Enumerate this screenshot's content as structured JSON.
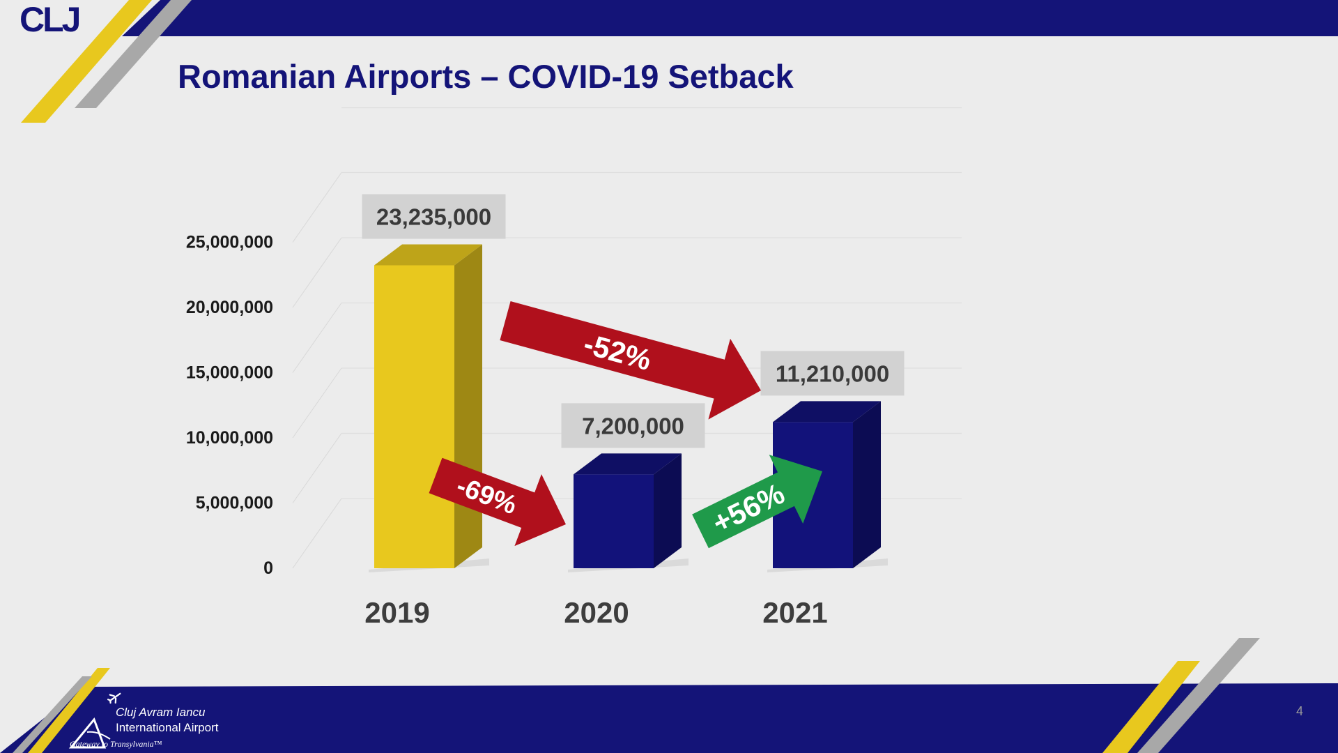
{
  "header": {
    "logo_text": "CLJ",
    "title": "Romanian Airports – COVID-19 Setback"
  },
  "colors": {
    "navy": "#141478",
    "yellow": "#e8c81e",
    "gray_stripe": "#a8a8a8",
    "bar_navy": "#12127a",
    "arrow_red": "#b0101c",
    "arrow_green": "#1f9a4a",
    "background": "#ececec"
  },
  "chart_data": {
    "type": "bar",
    "title": "",
    "xlabel": "",
    "ylabel": "",
    "categories": [
      "2019",
      "2020",
      "2021"
    ],
    "values": [
      23235000,
      7200000,
      11210000
    ],
    "value_labels": [
      "23,235,000",
      "7,200,000",
      "11,210,000"
    ],
    "bar_colors": [
      "#e8c81e",
      "#12127a",
      "#12127a"
    ],
    "ylim": [
      0,
      25000000
    ],
    "yticks": [
      0,
      5000000,
      10000000,
      15000000,
      20000000,
      25000000
    ],
    "ytick_labels": [
      "0",
      "5,000,000",
      "10,000,000",
      "15,000,000",
      "20,000,000",
      "25,000,000"
    ],
    "grid": true,
    "annotations": [
      {
        "text": "-52%",
        "from": "2019",
        "to": "2021",
        "color": "red"
      },
      {
        "text": "-69%",
        "from": "2019",
        "to": "2020",
        "color": "red"
      },
      {
        "text": "+56%",
        "from": "2020",
        "to": "2021",
        "color": "green"
      }
    ]
  },
  "footer": {
    "airport_name_line1": "Cluj Avram Iancu",
    "airport_name_line2": "International Airport",
    "tagline": "Gateway to Transylvania™",
    "page_number": "4",
    "plane_icon": "airplane-icon"
  }
}
